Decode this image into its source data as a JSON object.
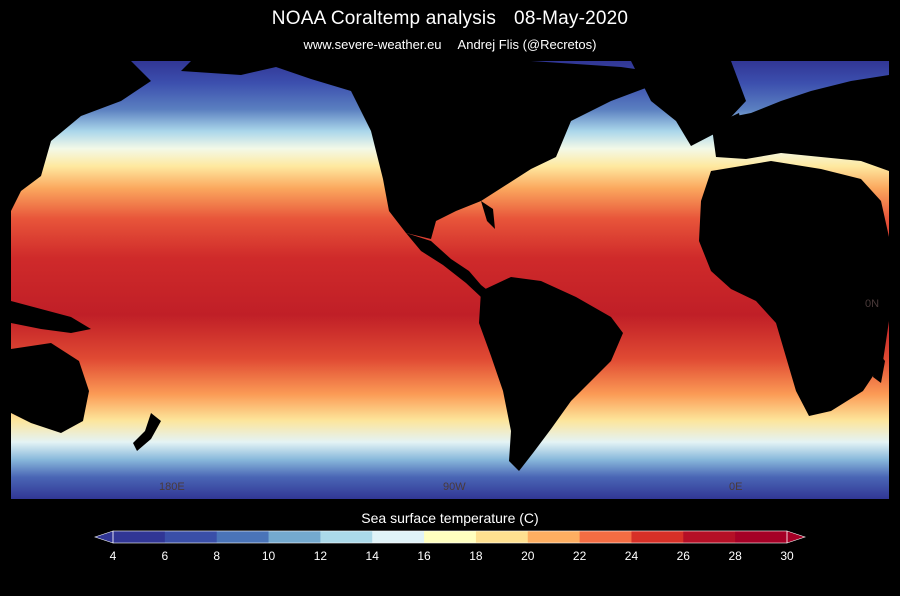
{
  "header": {
    "title": "NOAA Coraltemp analysis",
    "date": "08-May-2020",
    "source": "www.severe-weather.eu",
    "author": "Andrej Flis (@Recretos)"
  },
  "map": {
    "variable": "Sea surface temperature",
    "land_color": "#000000",
    "longitude_labels": [
      "180E",
      "90W",
      "0E",
      "0N"
    ]
  },
  "colorbar": {
    "title": "Sea surface temperature (C)",
    "min": 4,
    "max": 30,
    "ticks": [
      "4",
      "6",
      "8",
      "10",
      "12",
      "14",
      "16",
      "18",
      "20",
      "22",
      "24",
      "26",
      "28",
      "30"
    ],
    "colors": [
      "#313695",
      "#3a4fa8",
      "#4a74b8",
      "#74a9cf",
      "#abd9e9",
      "#e0f3f8",
      "#ffffbf",
      "#fee090",
      "#fdae61",
      "#f46d43",
      "#d73027",
      "#b50f26",
      "#a50026"
    ]
  }
}
